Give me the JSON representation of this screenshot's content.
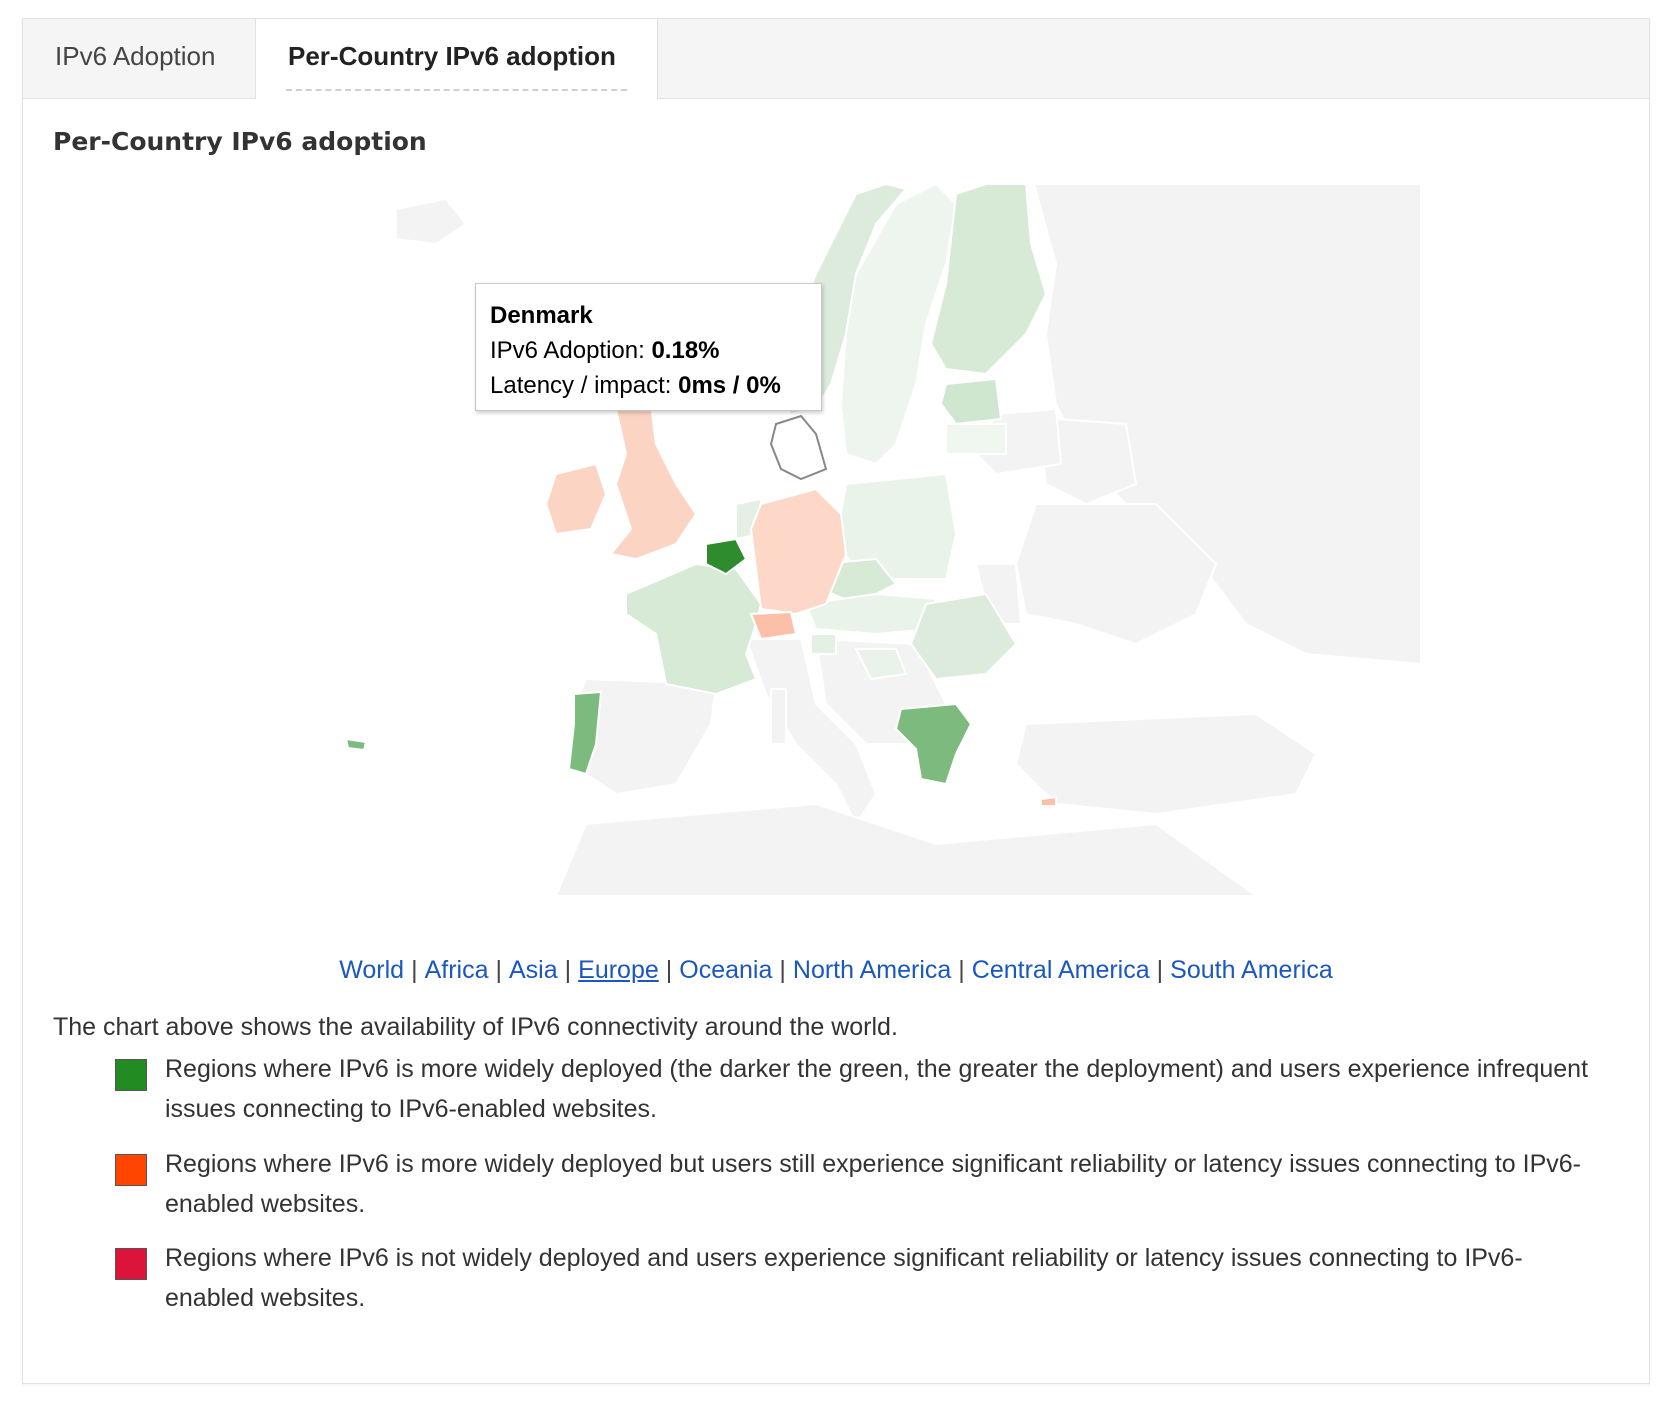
{
  "tabs": [
    {
      "label": "IPv6 Adoption",
      "active": false
    },
    {
      "label": "Per-Country IPv6 adoption",
      "active": true
    }
  ],
  "section_title": "Per-Country IPv6 adoption",
  "map": {
    "region": "Europe",
    "colors": {
      "high_green": "#2e8b2e",
      "mid_green": "#7fbf7f",
      "light_green": "#d6ead6",
      "very_light_green": "#eaf3ea",
      "salmon": "#fdd5c5",
      "orange_light": "#fcc0a8",
      "no_data": "#f4f4f4",
      "border": "#ffffff"
    },
    "tooltip": {
      "country": "Denmark",
      "adoption_label": "IPv6 Adoption:",
      "adoption_value": "0.18%",
      "latency_label": "Latency / impact:",
      "latency_value": "0ms / 0%"
    }
  },
  "region_links": [
    {
      "label": "World",
      "current": false
    },
    {
      "label": "Africa",
      "current": false
    },
    {
      "label": "Asia",
      "current": false
    },
    {
      "label": "Europe",
      "current": true
    },
    {
      "label": "Oceania",
      "current": false
    },
    {
      "label": "North America",
      "current": false
    },
    {
      "label": "Central America",
      "current": false
    },
    {
      "label": "South America",
      "current": false
    }
  ],
  "intro_text": "The chart above shows the availability of IPv6 connectivity around the world.",
  "legend": [
    {
      "color": "#228b22",
      "text": "Regions where IPv6 is more widely deployed (the darker the green, the greater the deployment) and users experience infrequent issues connecting to IPv6-enabled websites."
    },
    {
      "color": "#ff4500",
      "text": "Regions where IPv6 is more widely deployed but users still experience significant reliability or latency issues connecting to IPv6-enabled websites."
    },
    {
      "color": "#dc143c",
      "text": "Regions where IPv6 is not widely deployed and users experience significant reliability or latency issues connecting to IPv6-enabled websites."
    }
  ]
}
